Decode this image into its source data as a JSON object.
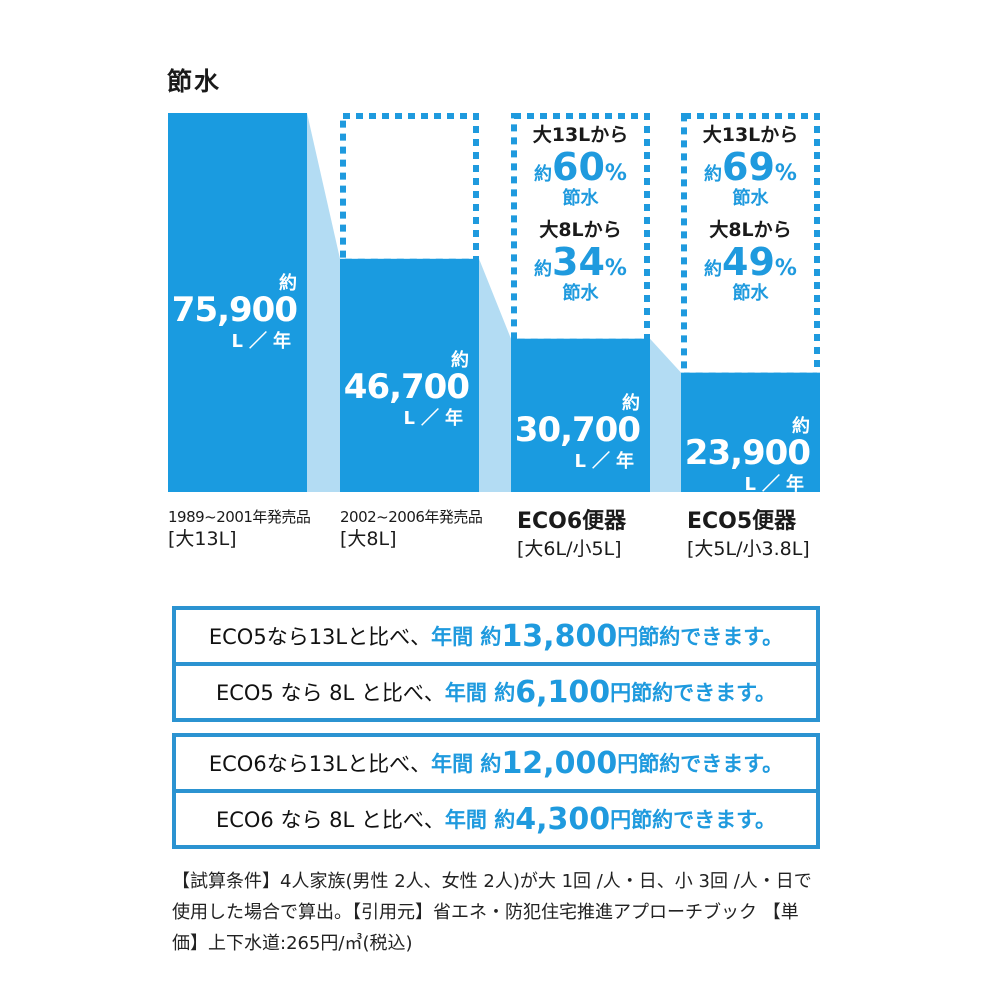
{
  "title": "節水",
  "colors": {
    "bar": "#1a9be0",
    "connector": "#b3dcf3",
    "accent": "#1f9ade",
    "box_border": "#2b93d1"
  },
  "chart_data": {
    "type": "bar",
    "title": "節水",
    "categories": [
      {
        "line1": "1989~2001年発売品",
        "line2": "[大13L]"
      },
      {
        "line1": "2002~2006年発売品",
        "line2": "[大8L]"
      },
      {
        "line1": "ECO6便器",
        "line2": "[大6L/小5L]"
      },
      {
        "line1": "ECO5便器",
        "line2": "[大5L/小3.8L]"
      }
    ],
    "values": [
      75900,
      46700,
      30700,
      23900
    ],
    "value_labels": [
      {
        "prefix": "約",
        "number": "75,900",
        "unit": "L／年"
      },
      {
        "prefix": "約",
        "number": "46,700",
        "unit": "L／年"
      },
      {
        "prefix": "約",
        "number": "30,700",
        "unit": "L／年"
      },
      {
        "prefix": "約",
        "number": "23,900",
        "unit": "L／年"
      }
    ],
    "ylim": [
      0,
      75900
    ],
    "grid": false,
    "savings": [
      null,
      null,
      [
        {
          "from": "大13Lから",
          "prefix": "約",
          "pct": "60",
          "pct_sign": "%",
          "label": "節水"
        },
        {
          "from": "大8Lから",
          "prefix": "約",
          "pct": "34",
          "pct_sign": "%",
          "label": "節水"
        }
      ],
      [
        {
          "from": "大13Lから",
          "prefix": "約",
          "pct": "69",
          "pct_sign": "%",
          "label": "節水"
        },
        {
          "from": "大8Lから",
          "prefix": "約",
          "pct": "49",
          "pct_sign": "%",
          "label": "節水"
        }
      ]
    ]
  },
  "summary": [
    [
      {
        "lead": "ECO5なら13Lと比べ、",
        "yearly": "年間 約",
        "amount": "13,800",
        "yen": "円",
        "tail": "節約できます。"
      },
      {
        "lead": "ECO5 なら 8L と比べ、",
        "yearly": "年間 約",
        "amount": "6,100",
        "yen": "円",
        "tail": "節約できます。"
      }
    ],
    [
      {
        "lead": "ECO6なら13Lと比べ、",
        "yearly": "年間 約",
        "amount": "12,000",
        "yen": "円",
        "tail": "節約できます。"
      },
      {
        "lead": "ECO6 なら 8L と比べ、",
        "yearly": "年間 約",
        "amount": "4,300",
        "yen": "円",
        "tail": "節約できます。"
      }
    ]
  ],
  "note": "【試算条件】4人家族(男性 2人、女性 2人)が大 1回 /人・日、小 3回 /人・日で使用した場合で算出。【引用元】省エネ・防犯住宅推進アプローチブック 【単価】上下水道:265円/㎥(税込)"
}
